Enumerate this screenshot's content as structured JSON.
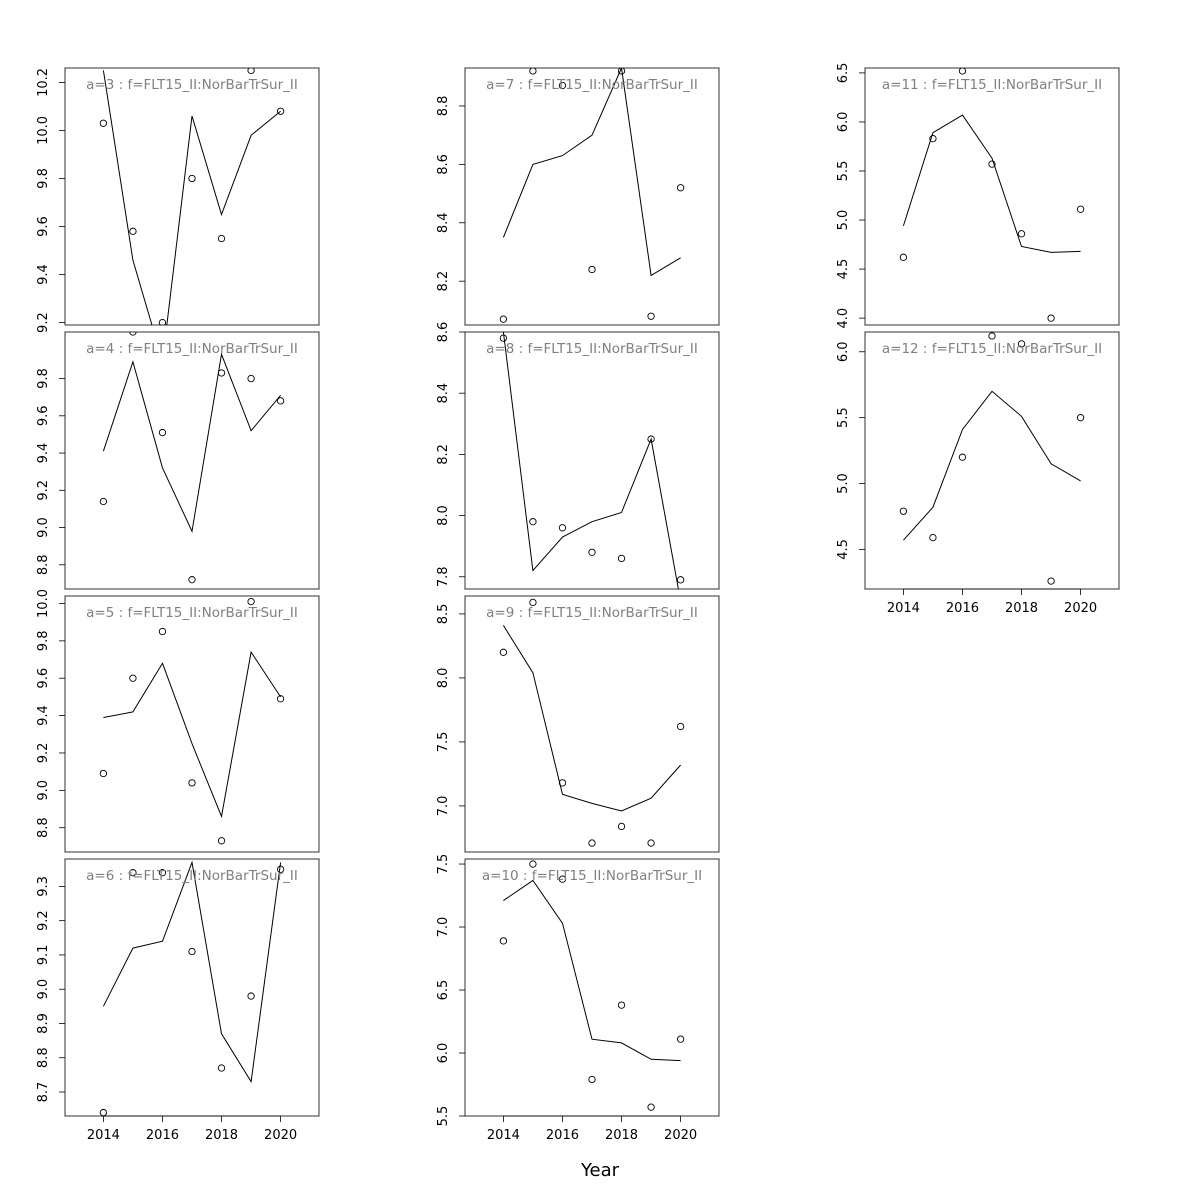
{
  "figure": {
    "xlabel": "Year",
    "line_color": "#000000",
    "point_color": "#000000",
    "panel_title_color": "#808080"
  },
  "chart_data": [
    {
      "type": "line",
      "title": "a=3  :  f=FLT15_II:NorBarTrSur_II",
      "x": [
        2014,
        2015,
        2016,
        2017,
        2018,
        2019,
        2020
      ],
      "series": [
        {
          "kind": "line",
          "values": [
            10.25,
            9.46,
            9.04,
            10.06,
            9.65,
            9.98,
            10.08
          ]
        },
        {
          "kind": "points",
          "values": [
            10.03,
            9.58,
            9.2,
            9.8,
            9.55,
            10.25,
            10.08
          ]
        }
      ],
      "xlim": [
        2012.7,
        2021.3
      ],
      "ylim": [
        9.19,
        10.26
      ],
      "yticks": [
        9.2,
        9.4,
        9.6,
        9.8,
        10.0,
        10.2
      ],
      "ytick_labels": [
        "9.2",
        "9.4",
        "9.6",
        "9.8",
        "10.0",
        "10.2"
      ],
      "xticks": [],
      "xtick_labels": []
    },
    {
      "type": "line",
      "title": "a=4  :  f=FLT15_II:NorBarTrSur_II",
      "x": [
        2014,
        2015,
        2016,
        2017,
        2018,
        2019,
        2020
      ],
      "series": [
        {
          "kind": "line",
          "values": [
            9.41,
            9.89,
            9.32,
            8.98,
            9.93,
            9.52,
            9.71
          ]
        },
        {
          "kind": "points",
          "values": [
            9.14,
            10.05,
            9.51,
            8.72,
            9.83,
            9.8,
            9.68
          ]
        }
      ],
      "xlim": [
        2012.7,
        2021.3
      ],
      "ylim": [
        8.67,
        10.05
      ],
      "yticks": [
        8.8,
        9.0,
        9.2,
        9.4,
        9.6,
        9.8
      ],
      "ytick_labels": [
        "8.8",
        "9.0",
        "9.2",
        "9.4",
        "9.6",
        "9.8"
      ],
      "xticks": [],
      "xtick_labels": []
    },
    {
      "type": "line",
      "title": "a=5  :  f=FLT15_II:NorBarTrSur_II",
      "x": [
        2014,
        2015,
        2016,
        2017,
        2018,
        2019,
        2020
      ],
      "series": [
        {
          "kind": "line",
          "values": [
            9.39,
            9.42,
            9.68,
            9.25,
            8.86,
            9.74,
            9.5
          ]
        },
        {
          "kind": "points",
          "values": [
            9.09,
            9.6,
            9.85,
            9.04,
            8.73,
            10.01,
            9.49
          ]
        }
      ],
      "xlim": [
        2012.7,
        2021.3
      ],
      "ylim": [
        8.67,
        10.04
      ],
      "yticks": [
        8.8,
        9.0,
        9.2,
        9.4,
        9.6,
        9.8,
        10.0
      ],
      "ytick_labels": [
        "8.8",
        "9.0",
        "9.2",
        "9.4",
        "9.6",
        "9.8",
        "10.0"
      ],
      "xticks": [],
      "xtick_labels": []
    },
    {
      "type": "line",
      "title": "a=6  :  f=FLT15_II:NorBarTrSur_II",
      "x": [
        2014,
        2015,
        2016,
        2017,
        2018,
        2019,
        2020
      ],
      "series": [
        {
          "kind": "line",
          "values": [
            8.95,
            9.12,
            9.14,
            9.37,
            8.87,
            8.73,
            9.37
          ]
        },
        {
          "kind": "points",
          "values": [
            8.64,
            9.34,
            9.34,
            9.11,
            8.77,
            8.98,
            9.35
          ]
        }
      ],
      "xlim": [
        2012.7,
        2021.3
      ],
      "ylim": [
        8.63,
        9.38
      ],
      "yticks": [
        8.7,
        8.8,
        8.9,
        9.0,
        9.1,
        9.2,
        9.3
      ],
      "ytick_labels": [
        "8.7",
        "8.8",
        "8.9",
        "9.0",
        "9.1",
        "9.2",
        "9.3"
      ],
      "xticks": [
        2014,
        2016,
        2018,
        2020
      ],
      "xtick_labels": [
        "2014",
        "2016",
        "2018",
        "2020"
      ]
    },
    {
      "type": "line",
      "title": "a=7  :  f=FLT15_II:NorBarTrSur_II",
      "x": [
        2014,
        2015,
        2016,
        2017,
        2018,
        2019,
        2020
      ],
      "series": [
        {
          "kind": "line",
          "values": [
            8.35,
            8.6,
            8.63,
            8.7,
            8.93,
            8.22,
            8.28
          ]
        },
        {
          "kind": "points",
          "values": [
            8.07,
            8.92,
            8.87,
            8.24,
            8.92,
            8.08,
            8.52
          ]
        }
      ],
      "xlim": [
        2012.7,
        2021.3
      ],
      "ylim": [
        8.05,
        8.93
      ],
      "yticks": [
        8.2,
        8.4,
        8.6,
        8.8
      ],
      "ytick_labels": [
        "8.2",
        "8.4",
        "8.6",
        "8.8"
      ],
      "xticks": [],
      "xtick_labels": []
    },
    {
      "type": "line",
      "title": "a=8  :  f=FLT15_II:NorBarTrSur_II",
      "x": [
        2014,
        2015,
        2016,
        2017,
        2018,
        2019,
        2020
      ],
      "series": [
        {
          "kind": "line",
          "values": [
            8.6,
            7.82,
            7.93,
            7.98,
            8.01,
            8.25,
            7.72
          ]
        },
        {
          "kind": "points",
          "values": [
            8.58,
            7.98,
            7.96,
            7.88,
            7.86,
            8.25,
            7.79
          ]
        }
      ],
      "xlim": [
        2012.7,
        2021.3
      ],
      "ylim": [
        7.76,
        8.6
      ],
      "yticks": [
        7.8,
        8.0,
        8.2,
        8.4,
        8.6
      ],
      "ytick_labels": [
        "7.8",
        "8.0",
        "8.2",
        "8.4",
        "8.6"
      ],
      "xticks": [],
      "xtick_labels": []
    },
    {
      "type": "line",
      "title": "a=9  :  f=FLT15_II:NorBarTrSur_II",
      "x": [
        2014,
        2015,
        2016,
        2017,
        2018,
        2019,
        2020
      ],
      "series": [
        {
          "kind": "line",
          "values": [
            8.41,
            8.04,
            7.09,
            7.02,
            6.96,
            7.06,
            7.32
          ]
        },
        {
          "kind": "points",
          "values": [
            8.2,
            8.59,
            7.18,
            6.71,
            6.84,
            6.71,
            7.62
          ]
        }
      ],
      "xlim": [
        2012.7,
        2021.3
      ],
      "ylim": [
        6.64,
        8.64
      ],
      "yticks": [
        7.0,
        7.5,
        8.0,
        8.5
      ],
      "ytick_labels": [
        "7.0",
        "7.5",
        "8.0",
        "8.5"
      ],
      "xticks": [],
      "xtick_labels": []
    },
    {
      "type": "line",
      "title": "a=10  :  f=FLT15_II:NorBarTrSur_II",
      "x": [
        2014,
        2015,
        2016,
        2017,
        2018,
        2019,
        2020
      ],
      "series": [
        {
          "kind": "line",
          "values": [
            7.21,
            7.37,
            7.03,
            6.11,
            6.08,
            5.95,
            5.94
          ]
        },
        {
          "kind": "points",
          "values": [
            6.89,
            7.5,
            7.38,
            5.79,
            6.38,
            5.57,
            6.11
          ]
        }
      ],
      "xlim": [
        2012.7,
        2021.3
      ],
      "ylim": [
        5.5,
        7.54
      ],
      "yticks": [
        5.5,
        6.0,
        6.5,
        7.0,
        7.5
      ],
      "ytick_labels": [
        "5.5",
        "6.0",
        "6.5",
        "7.0",
        "7.5"
      ],
      "xticks": [
        2014,
        2016,
        2018,
        2020
      ],
      "xtick_labels": [
        "2014",
        "2016",
        "2018",
        "2020"
      ]
    },
    {
      "type": "line",
      "title": "a=11  :  f=FLT15_II:NorBarTrSur_II",
      "x": [
        2014,
        2015,
        2016,
        2017,
        2018,
        2019,
        2020
      ],
      "series": [
        {
          "kind": "line",
          "values": [
            4.94,
            5.89,
            6.07,
            5.63,
            4.73,
            4.67,
            4.68
          ]
        },
        {
          "kind": "points",
          "values": [
            4.62,
            5.83,
            6.52,
            5.57,
            4.86,
            4.0,
            5.11
          ]
        }
      ],
      "xlim": [
        2012.7,
        2021.3
      ],
      "ylim": [
        3.93,
        6.55
      ],
      "yticks": [
        4.0,
        4.5,
        5.0,
        5.5,
        6.0,
        6.5
      ],
      "ytick_labels": [
        "4.0",
        "4.5",
        "5.0",
        "5.5",
        "6.0",
        "6.5"
      ],
      "xticks": [],
      "xtick_labels": []
    },
    {
      "type": "line",
      "title": "a=12  :  f=FLT15_II:NorBarTrSur_II",
      "x": [
        2014,
        2015,
        2016,
        2017,
        2018,
        2019,
        2020
      ],
      "series": [
        {
          "kind": "line",
          "values": [
            4.57,
            4.82,
            5.41,
            5.7,
            5.51,
            5.15,
            5.02
          ]
        },
        {
          "kind": "points",
          "values": [
            4.79,
            4.59,
            5.2,
            6.12,
            6.06,
            4.26,
            5.5
          ]
        }
      ],
      "xlim": [
        2012.7,
        2021.3
      ],
      "ylim": [
        4.2,
        6.15
      ],
      "yticks": [
        4.5,
        5.0,
        5.5,
        6.0
      ],
      "ytick_labels": [
        "4.5",
        "5.0",
        "5.5",
        "6.0"
      ],
      "xticks": [
        2014,
        2016,
        2018,
        2020
      ],
      "xtick_labels": [
        "2014",
        "2016",
        "2018",
        "2020"
      ]
    }
  ]
}
